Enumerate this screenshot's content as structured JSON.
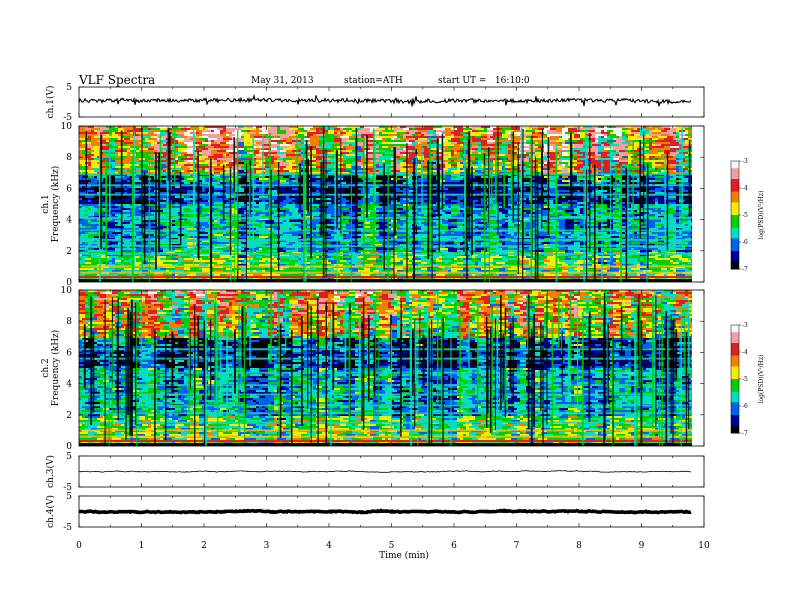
{
  "header": {
    "title": "VLF Spectra",
    "date": "May 31, 2013",
    "station": "station=ATH",
    "start": "start UT =   16:10:0"
  },
  "colors": {
    "colormap": [
      "#f8f8f8",
      "#f4a0a0",
      "#e02020",
      "#f08000",
      "#f0f000",
      "#00d000",
      "#00e0c0",
      "#0060f0",
      "#000090",
      "#000000"
    ]
  },
  "chart_data": [
    {
      "type": "line",
      "name": "ch1-voltage",
      "ylabel": "ch.1(V)",
      "ylim": [
        -5,
        5
      ],
      "yticks": [
        "5",
        "-5"
      ],
      "xlim": [
        0,
        10
      ],
      "trace": {
        "mean": 0.5,
        "noise": 0.6,
        "spikes": 1.5,
        "stroke_width": 1.1
      }
    },
    {
      "type": "heatmap",
      "name": "ch1-spectrogram",
      "ylabel": "ch.1\nFrequency (kHz)",
      "ylim": [
        0,
        10
      ],
      "yticks": [
        "0",
        "2",
        "4",
        "6",
        "8",
        "10"
      ],
      "xlim": [
        0,
        9.8
      ],
      "colorbar": {
        "label": "log(PSD)(V²/Hz)",
        "range": [
          -7,
          -3
        ],
        "ticks": [
          "-3",
          "-4",
          "-5",
          "-6",
          "-7"
        ]
      },
      "bands_khz": [
        0.3,
        0.6,
        1.0,
        1.8,
        2.3,
        2.7,
        3.3,
        4.1,
        5.6,
        6.2,
        6.9
      ],
      "upper_activity": 0.85
    },
    {
      "type": "heatmap",
      "name": "ch2-spectrogram",
      "ylabel": "ch.2\nFrequency (kHz)",
      "ylim": [
        0,
        10
      ],
      "yticks": [
        "0",
        "2",
        "4",
        "6",
        "8",
        "10"
      ],
      "xlim": [
        0,
        9.8
      ],
      "colorbar": {
        "label": "log(PSD)(V²/Hz)",
        "range": [
          -7,
          -3
        ],
        "ticks": [
          "-3",
          "-4",
          "-5",
          "-6",
          "-7"
        ]
      },
      "bands_khz": [
        0.3,
        0.6,
        1.0,
        1.5,
        2.1,
        2.6,
        3.3,
        3.9,
        4.7,
        5.6,
        6.2
      ],
      "upper_activity": 0.55
    },
    {
      "type": "line",
      "name": "ch3-voltage",
      "ylabel": "ch.3(V)",
      "ylim": [
        -5,
        5
      ],
      "yticks": [
        "5",
        "-5"
      ],
      "xlim": [
        0,
        10
      ],
      "trace": {
        "mean": 0.0,
        "noise": 0.08,
        "spikes": 0.0,
        "stroke_width": 0.8
      }
    },
    {
      "type": "line",
      "name": "ch4-voltage",
      "ylabel": "ch.4(V)",
      "ylim": [
        -5,
        5
      ],
      "yticks": [
        "5",
        "-5"
      ],
      "xlim": [
        0,
        10
      ],
      "trace": {
        "mean": 0.0,
        "noise": 0.12,
        "spikes": 0.0,
        "stroke_width": 3.5
      }
    }
  ],
  "x_axis": {
    "label": "Time (min)",
    "ticks": [
      "0",
      "1",
      "2",
      "3",
      "4",
      "5",
      "6",
      "7",
      "8",
      "9",
      "10"
    ],
    "range": [
      0,
      10
    ]
  }
}
